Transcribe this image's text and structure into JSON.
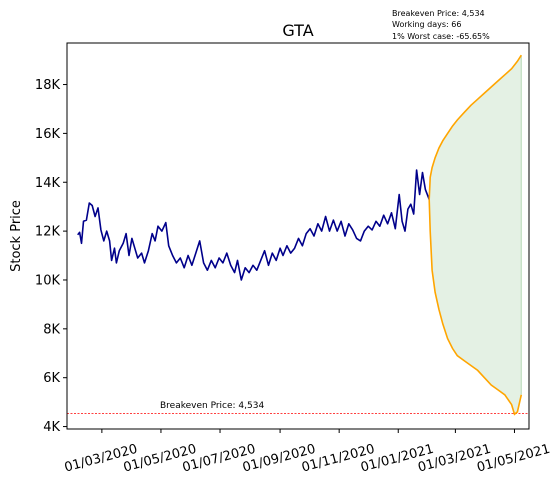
{
  "chart_data": {
    "type": "line",
    "title": "GTA",
    "ylabel": "Stock Price",
    "xlabel": "",
    "ylim": [
      3900,
      19700
    ],
    "xlim": [
      "2020-01-25",
      "2021-05-16"
    ],
    "grid": false,
    "yticks": [
      {
        "value": 4000,
        "label": "4K"
      },
      {
        "value": 6000,
        "label": "6K"
      },
      {
        "value": 8000,
        "label": "8K"
      },
      {
        "value": 10000,
        "label": "10K"
      },
      {
        "value": 12000,
        "label": "12K"
      },
      {
        "value": 14000,
        "label": "14K"
      },
      {
        "value": 16000,
        "label": "16K"
      },
      {
        "value": 18000,
        "label": "18K"
      }
    ],
    "xticks": [
      {
        "value": "2020-03-01",
        "label": "01/03/2020"
      },
      {
        "value": "2020-05-01",
        "label": "01/05/2020"
      },
      {
        "value": "2020-07-01",
        "label": "01/07/2020"
      },
      {
        "value": "2020-09-01",
        "label": "01/09/2020"
      },
      {
        "value": "2020-11-01",
        "label": "01/11/2020"
      },
      {
        "value": "2021-01-01",
        "label": "01/01/2021"
      },
      {
        "value": "2021-03-01",
        "label": "01/03/2021"
      },
      {
        "value": "2021-05-01",
        "label": "01/05/2021"
      }
    ],
    "series": [
      {
        "color": "#00008B",
        "points": [
          [
            "2020-02-05",
            11850
          ],
          [
            "2020-02-07",
            11950
          ],
          [
            "2020-02-09",
            11500
          ],
          [
            "2020-02-11",
            12400
          ],
          [
            "2020-02-14",
            12450
          ],
          [
            "2020-02-17",
            13150
          ],
          [
            "2020-02-20",
            13050
          ],
          [
            "2020-02-23",
            12600
          ],
          [
            "2020-02-26",
            12950
          ],
          [
            "2020-02-29",
            12050
          ],
          [
            "2020-03-03",
            11600
          ],
          [
            "2020-03-06",
            12000
          ],
          [
            "2020-03-09",
            11600
          ],
          [
            "2020-03-11",
            10800
          ],
          [
            "2020-03-14",
            11300
          ],
          [
            "2020-03-16",
            10700
          ],
          [
            "2020-03-19",
            11200
          ],
          [
            "2020-03-23",
            11500
          ],
          [
            "2020-03-26",
            11900
          ],
          [
            "2020-03-29",
            11000
          ],
          [
            "2020-04-01",
            11700
          ],
          [
            "2020-04-04",
            11300
          ],
          [
            "2020-04-07",
            10900
          ],
          [
            "2020-04-11",
            11100
          ],
          [
            "2020-04-14",
            10700
          ],
          [
            "2020-04-18",
            11200
          ],
          [
            "2020-04-22",
            11900
          ],
          [
            "2020-04-25",
            11600
          ],
          [
            "2020-04-28",
            12200
          ],
          [
            "2020-05-02",
            12000
          ],
          [
            "2020-05-06",
            12350
          ],
          [
            "2020-05-09",
            11400
          ],
          [
            "2020-05-13",
            11000
          ],
          [
            "2020-05-17",
            10700
          ],
          [
            "2020-05-21",
            10900
          ],
          [
            "2020-05-25",
            10500
          ],
          [
            "2020-05-29",
            11000
          ],
          [
            "2020-06-02",
            10600
          ],
          [
            "2020-06-06",
            11100
          ],
          [
            "2020-06-10",
            11600
          ],
          [
            "2020-06-14",
            10700
          ],
          [
            "2020-06-18",
            10400
          ],
          [
            "2020-06-22",
            10800
          ],
          [
            "2020-06-26",
            10500
          ],
          [
            "2020-06-30",
            10900
          ],
          [
            "2020-07-04",
            10700
          ],
          [
            "2020-07-08",
            11100
          ],
          [
            "2020-07-12",
            10600
          ],
          [
            "2020-07-16",
            10300
          ],
          [
            "2020-07-19",
            10800
          ],
          [
            "2020-07-23",
            10000
          ],
          [
            "2020-07-27",
            10500
          ],
          [
            "2020-07-31",
            10300
          ],
          [
            "2020-08-04",
            10600
          ],
          [
            "2020-08-08",
            10400
          ],
          [
            "2020-08-12",
            10800
          ],
          [
            "2020-08-16",
            11200
          ],
          [
            "2020-08-20",
            10600
          ],
          [
            "2020-08-24",
            11100
          ],
          [
            "2020-08-28",
            10800
          ],
          [
            "2020-09-01",
            11300
          ],
          [
            "2020-09-04",
            11000
          ],
          [
            "2020-09-08",
            11400
          ],
          [
            "2020-09-12",
            11100
          ],
          [
            "2020-09-16",
            11300
          ],
          [
            "2020-09-20",
            11700
          ],
          [
            "2020-09-24",
            11400
          ],
          [
            "2020-09-28",
            11900
          ],
          [
            "2020-10-02",
            12100
          ],
          [
            "2020-10-06",
            11800
          ],
          [
            "2020-10-10",
            12300
          ],
          [
            "2020-10-14",
            12000
          ],
          [
            "2020-10-18",
            12600
          ],
          [
            "2020-10-22",
            12000
          ],
          [
            "2020-10-26",
            12450
          ],
          [
            "2020-10-30",
            12000
          ],
          [
            "2020-11-03",
            12400
          ],
          [
            "2020-11-07",
            11800
          ],
          [
            "2020-11-11",
            12300
          ],
          [
            "2020-11-15",
            12050
          ],
          [
            "2020-11-19",
            11700
          ],
          [
            "2020-11-23",
            11600
          ],
          [
            "2020-11-27",
            12000
          ],
          [
            "2020-12-01",
            12200
          ],
          [
            "2020-12-05",
            12050
          ],
          [
            "2020-12-09",
            12400
          ],
          [
            "2020-12-13",
            12200
          ],
          [
            "2020-12-17",
            12650
          ],
          [
            "2020-12-21",
            12300
          ],
          [
            "2020-12-25",
            12750
          ],
          [
            "2020-12-29",
            12100
          ],
          [
            "2021-01-02",
            13500
          ],
          [
            "2021-01-05",
            12400
          ],
          [
            "2021-01-08",
            12000
          ],
          [
            "2021-01-11",
            12900
          ],
          [
            "2021-01-14",
            13100
          ],
          [
            "2021-01-17",
            12700
          ],
          [
            "2021-01-20",
            14500
          ],
          [
            "2021-01-23",
            13500
          ],
          [
            "2021-01-26",
            14400
          ],
          [
            "2021-01-29",
            13700
          ],
          [
            "2021-02-02",
            13300
          ]
        ]
      }
    ],
    "forecast": {
      "color": "#FFA500",
      "fill_color": "#e4f1e4",
      "upper": [
        [
          "2021-02-02",
          13300
        ],
        [
          "2021-02-03",
          14200
        ],
        [
          "2021-02-05",
          14600
        ],
        [
          "2021-02-08",
          15000
        ],
        [
          "2021-02-12",
          15400
        ],
        [
          "2021-02-16",
          15700
        ],
        [
          "2021-02-21",
          16000
        ],
        [
          "2021-02-26",
          16300
        ],
        [
          "2021-03-03",
          16550
        ],
        [
          "2021-03-10",
          16850
        ],
        [
          "2021-03-17",
          17150
        ],
        [
          "2021-03-24",
          17400
        ],
        [
          "2021-03-31",
          17650
        ],
        [
          "2021-04-07",
          17900
        ],
        [
          "2021-04-14",
          18150
        ],
        [
          "2021-04-21",
          18400
        ],
        [
          "2021-04-28",
          18650
        ],
        [
          "2021-05-04",
          18950
        ],
        [
          "2021-05-08",
          19200
        ]
      ],
      "lower": [
        [
          "2021-02-02",
          13300
        ],
        [
          "2021-02-03",
          12000
        ],
        [
          "2021-02-05",
          10400
        ],
        [
          "2021-02-08",
          9500
        ],
        [
          "2021-02-12",
          8800
        ],
        [
          "2021-02-16",
          8200
        ],
        [
          "2021-02-21",
          7600
        ],
        [
          "2021-02-26",
          7200
        ],
        [
          "2021-03-03",
          6900
        ],
        [
          "2021-03-10",
          6700
        ],
        [
          "2021-03-17",
          6500
        ],
        [
          "2021-03-24",
          6300
        ],
        [
          "2021-03-31",
          6000
        ],
        [
          "2021-04-07",
          5700
        ],
        [
          "2021-04-14",
          5500
        ],
        [
          "2021-04-21",
          5300
        ],
        [
          "2021-04-28",
          4900
        ],
        [
          "2021-05-01",
          4500
        ],
        [
          "2021-05-04",
          4600
        ],
        [
          "2021-05-08",
          5300
        ]
      ]
    },
    "breakeven": {
      "value": 4534,
      "color": "#ff0000",
      "label": "Breakeven Price: 4,534"
    },
    "annotations": [
      "Breakeven Price: 4,534",
      "Working days: 66",
      "1% Worst case: -65.65%"
    ]
  }
}
